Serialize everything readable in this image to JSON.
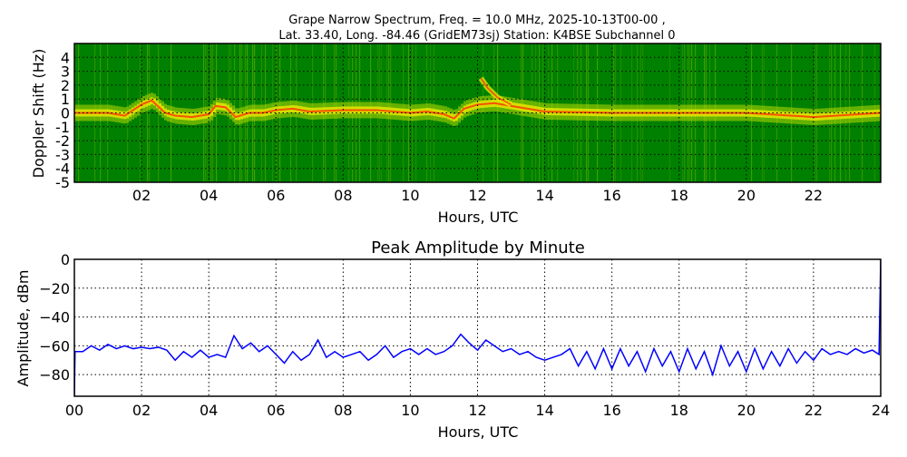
{
  "chart_data": [
    {
      "type": "heatmap",
      "title_line1": "Grape Narrow Spectrum, Freq. = 10.0 MHz, 2025-10-13T00-00 ,",
      "title_line2": "Lat.  33.40, Long. -84.46 (GridEM73sj) Station: K4BSE Subchannel 0",
      "xlabel": "Hours, UTC",
      "ylabel": "Doppler Shift (Hz)",
      "xlim": [
        0,
        24
      ],
      "ylim": [
        -5,
        5
      ],
      "xticks": [
        "02",
        "04",
        "06",
        "08",
        "10",
        "12",
        "14",
        "16",
        "18",
        "20",
        "22"
      ],
      "xtick_values": [
        2,
        4,
        6,
        8,
        10,
        12,
        14,
        16,
        18,
        20,
        22
      ],
      "yticks": [
        "-5",
        "-4",
        "-3",
        "-2",
        "-1",
        "0",
        "1",
        "2",
        "3",
        "4"
      ],
      "ytick_values": [
        -5,
        -4,
        -3,
        -2,
        -1,
        0,
        1,
        2,
        3,
        4
      ],
      "grid": true,
      "colors": {
        "background": "#008000",
        "band": "#e6e600",
        "peak": "#ff3000"
      },
      "peak_trace": {
        "hours": [
          0,
          0.5,
          1,
          1.5,
          2,
          2.3,
          2.7,
          3,
          3.5,
          4,
          4.2,
          4.5,
          4.8,
          5.2,
          5.6,
          6,
          6.5,
          7,
          8,
          9,
          10,
          10.5,
          11,
          11.3,
          11.6,
          12,
          12.5,
          13,
          14,
          16,
          18,
          20,
          22,
          24
        ],
        "doppler": [
          0,
          0,
          0,
          -0.2,
          0.6,
          0.9,
          0,
          -0.2,
          -0.3,
          -0.1,
          0.5,
          0.4,
          -0.3,
          0,
          0,
          0.2,
          0.3,
          0.1,
          0.2,
          0.2,
          0,
          0.1,
          -0.1,
          -0.4,
          0.3,
          0.6,
          0.7,
          0.5,
          0.1,
          0,
          0,
          0,
          -0.3,
          0
        ]
      },
      "secondary_trace": {
        "hours": [
          12.1,
          12.3,
          12.6,
          13.0
        ],
        "doppler": [
          2.5,
          1.8,
          1.1,
          0.6
        ]
      }
    },
    {
      "type": "line",
      "title": "Peak Amplitude by Minute",
      "xlabel": "Hours, UTC",
      "ylabel": "Amplitude, dBm",
      "xlim": [
        0,
        24
      ],
      "ylim": [
        -95,
        0
      ],
      "xticks": [
        "00",
        "02",
        "04",
        "06",
        "08",
        "10",
        "12",
        "14",
        "16",
        "18",
        "20",
        "22",
        "24"
      ],
      "xtick_values": [
        0,
        2,
        4,
        6,
        8,
        10,
        12,
        14,
        16,
        18,
        20,
        22,
        24
      ],
      "yticks": [
        "0",
        "−20",
        "−40",
        "−60",
        "−80"
      ],
      "ytick_values": [
        0,
        -20,
        -40,
        -60,
        -80
      ],
      "grid": true,
      "line_color": "#0000ff",
      "x": [
        0,
        0.02,
        0.25,
        0.5,
        0.75,
        1,
        1.25,
        1.5,
        1.75,
        2,
        2.25,
        2.5,
        2.75,
        3,
        3.25,
        3.5,
        3.75,
        4,
        4.25,
        4.5,
        4.75,
        5,
        5.25,
        5.5,
        5.75,
        6,
        6.25,
        6.5,
        6.75,
        7,
        7.25,
        7.5,
        7.75,
        8,
        8.25,
        8.5,
        8.75,
        9,
        9.25,
        9.5,
        9.75,
        10,
        10.25,
        10.5,
        10.75,
        11,
        11.25,
        11.5,
        11.75,
        12,
        12.25,
        12.5,
        12.75,
        13,
        13.25,
        13.5,
        13.75,
        14,
        14.25,
        14.5,
        14.75,
        15,
        15.25,
        15.5,
        15.75,
        16,
        16.25,
        16.5,
        16.75,
        17,
        17.25,
        17.5,
        17.75,
        18,
        18.25,
        18.5,
        18.75,
        19,
        19.25,
        19.5,
        19.75,
        20,
        20.25,
        20.5,
        20.75,
        21,
        21.25,
        21.5,
        21.75,
        22,
        22.25,
        22.5,
        22.75,
        23,
        23.25,
        23.5,
        23.75,
        23.95,
        24
      ],
      "y": [
        -95,
        -64,
        -64,
        -60,
        -63,
        -59,
        -62,
        -60,
        -62,
        -61,
        -62,
        -61,
        -63,
        -70,
        -64,
        -68,
        -63,
        -68,
        -66,
        -68,
        -53,
        -62,
        -58,
        -64,
        -60,
        -66,
        -72,
        -64,
        -70,
        -66,
        -56,
        -68,
        -64,
        -68,
        -66,
        -64,
        -70,
        -66,
        -60,
        -68,
        -64,
        -62,
        -66,
        -62,
        -66,
        -64,
        -60,
        -52,
        -58,
        -63,
        -56,
        -60,
        -64,
        -62,
        -66,
        -64,
        -68,
        -70,
        -68,
        -66,
        -62,
        -74,
        -64,
        -76,
        -62,
        -76,
        -62,
        -74,
        -64,
        -78,
        -62,
        -74,
        -64,
        -78,
        -62,
        -76,
        -64,
        -80,
        -60,
        -74,
        -64,
        -78,
        -62,
        -76,
        -64,
        -74,
        -62,
        -72,
        -64,
        -70,
        -62,
        -66,
        -64,
        -66,
        -62,
        -65,
        -63,
        -66,
        -0.5
      ]
    }
  ]
}
